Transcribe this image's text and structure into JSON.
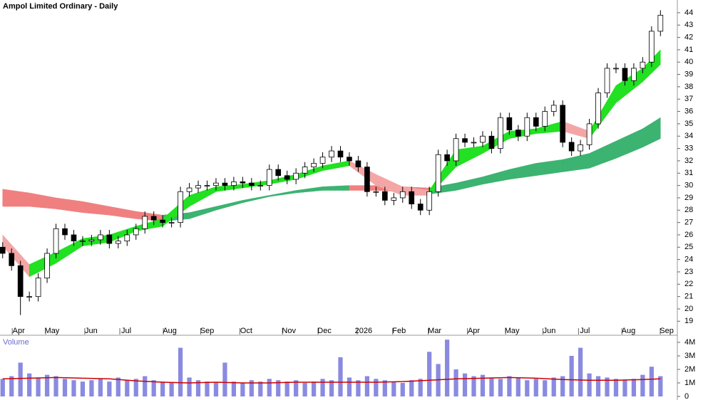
{
  "chart_data": {
    "type": "candlestick",
    "title": "Ampol Limited Ordinary - Daily",
    "up_color": "#ffffff",
    "down_color": "#000000",
    "xlim": [
      -0.3,
      75.9
    ],
    "xticks": [
      {
        "value": 1.8,
        "label": "Apr"
      },
      {
        "value": 5.55,
        "label": "May"
      },
      {
        "value": 9.96,
        "label": "Jun"
      },
      {
        "value": 13.9,
        "label": "Jul"
      },
      {
        "value": 18.8,
        "label": "Aug"
      },
      {
        "value": 23.0,
        "label": "Sep"
      },
      {
        "value": 27.4,
        "label": "Oct"
      },
      {
        "value": 32.2,
        "label": "Nov"
      },
      {
        "value": 36.2,
        "label": "Dec"
      },
      {
        "value": 40.6,
        "label": "2026"
      },
      {
        "value": 44.6,
        "label": "Feb"
      },
      {
        "value": 48.6,
        "label": "Mar"
      },
      {
        "value": 53.0,
        "label": "Apr"
      },
      {
        "value": 57.3,
        "label": "May"
      },
      {
        "value": 61.5,
        "label": "Jun"
      },
      {
        "value": 65.5,
        "label": "Jul"
      },
      {
        "value": 70.4,
        "label": "Aug"
      },
      {
        "value": 74.7,
        "label": "Sep"
      }
    ],
    "ylim": [
      18.5,
      44.8
    ],
    "yticks": [
      19,
      20,
      21,
      22,
      23,
      24,
      25,
      26,
      27,
      28,
      29,
      30,
      31,
      32,
      33,
      34,
      35,
      36,
      37,
      38,
      39,
      40,
      41,
      42,
      43,
      44
    ],
    "open": [
      25.0,
      24.5,
      23.5,
      21,
      21,
      22.5,
      24.5,
      26.5,
      26,
      25.5,
      25.5,
      25.6,
      26,
      25.3,
      25.5,
      26,
      26.5,
      27.5,
      27.2,
      27,
      27,
      29.5,
      29.8,
      30,
      30,
      30.2,
      30,
      30.3,
      30.2,
      30,
      30,
      31.3,
      30.8,
      30.5,
      31,
      31.5,
      31.8,
      32.3,
      32.8,
      32.3,
      32,
      31.5,
      29.5,
      29.5,
      28.8,
      29,
      29.5,
      28.5,
      28,
      29.5,
      32.5,
      32,
      33.8,
      33.5,
      33.5,
      34,
      33,
      35.5,
      34.5,
      34,
      35.5,
      34.8,
      36,
      36.5,
      33.5,
      32.8,
      33.3,
      35,
      37.5,
      39.5,
      39.5,
      38.5,
      39.5,
      40,
      42.5
    ],
    "high": [
      25.4,
      24.9,
      23.9,
      21.4,
      22.9,
      24.9,
      26.9,
      26.9,
      26.4,
      25.9,
      26.0,
      26.4,
      26.4,
      25.9,
      26.4,
      26.9,
      27.9,
      27.9,
      27.6,
      27.4,
      29.9,
      30.2,
      30.4,
      30.4,
      30.6,
      30.6,
      30.7,
      30.7,
      30.6,
      30.4,
      31.7,
      31.7,
      31.2,
      31.4,
      31.9,
      32.2,
      32.7,
      33.2,
      33.2,
      32.7,
      32.4,
      31.9,
      29.9,
      29.9,
      29.4,
      29.9,
      29.9,
      28.9,
      29.9,
      32.9,
      32.9,
      34.2,
      34.2,
      33.9,
      34.4,
      34.4,
      35.9,
      35.9,
      34.9,
      35.9,
      35.9,
      36.4,
      36.9,
      36.9,
      33.9,
      33.7,
      35.4,
      37.9,
      39.9,
      39.9,
      39.9,
      39.9,
      40.4,
      42.9,
      44.2
    ],
    "low": [
      24.1,
      23.1,
      19.5,
      20.6,
      20.6,
      22.1,
      24.1,
      25.6,
      25.1,
      25.1,
      25.1,
      25.2,
      24.9,
      24.9,
      25.1,
      25.6,
      26.1,
      26.8,
      26.6,
      26.6,
      26.6,
      29.1,
      29.4,
      29.6,
      29.6,
      29.6,
      29.6,
      29.8,
      29.6,
      29.6,
      29.6,
      30.4,
      30.1,
      30.1,
      30.6,
      31.1,
      31.4,
      31.9,
      31.9,
      31.6,
      31.1,
      29.1,
      29.1,
      28.4,
      28.4,
      28.6,
      28.1,
      27.6,
      27.6,
      29.1,
      31.6,
      31.6,
      33.1,
      33.1,
      33.1,
      32.6,
      32.6,
      34.1,
      33.6,
      33.6,
      34.4,
      34.4,
      35.6,
      33.1,
      32.4,
      32.4,
      32.9,
      34.6,
      37.1,
      39.1,
      38.1,
      38.1,
      39.1,
      39.6,
      42.1
    ],
    "close": [
      24.5,
      23.5,
      21,
      21,
      22.5,
      24.5,
      26.5,
      26,
      25.5,
      25.5,
      25.6,
      26,
      25.3,
      25.5,
      26,
      26.5,
      27.5,
      27.2,
      27,
      27,
      29.5,
      29.8,
      30,
      30,
      30.2,
      30,
      30.3,
      30.2,
      30,
      30,
      31.3,
      30.8,
      30.5,
      31,
      31.5,
      31.8,
      32.3,
      32.8,
      32.3,
      32,
      31.5,
      29.5,
      29.5,
      28.8,
      29,
      29.5,
      28.5,
      28,
      29.5,
      32.5,
      32,
      33.8,
      33.5,
      33.5,
      34,
      33,
      35.5,
      34.5,
      34,
      35.5,
      34.8,
      36,
      36.5,
      33.5,
      32.8,
      33.3,
      35,
      37.5,
      39.5,
      39.5,
      38.5,
      39.5,
      40,
      42.5,
      43.8
    ],
    "bands": [
      {
        "x": [
          0,
          3,
          6,
          9,
          12,
          15,
          18,
          21,
          24,
          27,
          30,
          33,
          36,
          39,
          42,
          45,
          48,
          51,
          54,
          57,
          60,
          63,
          66,
          69,
          72,
          74
        ],
        "upper": [
          29.7,
          29.4,
          29.0,
          28.7,
          28.3,
          27.9,
          27.6,
          27.8,
          28.3,
          28.8,
          29.2,
          29.6,
          29.9,
          30.0,
          30.0,
          29.9,
          29.8,
          30.2,
          30.7,
          31.3,
          31.8,
          32.1,
          32.6,
          33.6,
          34.6,
          35.5
        ],
        "lower": [
          28.3,
          28.3,
          28.1,
          27.8,
          27.6,
          27.3,
          27.1,
          27.3,
          28.0,
          28.6,
          29.1,
          29.4,
          29.6,
          29.6,
          29.6,
          29.5,
          29.3,
          29.6,
          30.1,
          30.5,
          30.8,
          31.1,
          31.4,
          32.2,
          33.1,
          33.8
        ],
        "up_color": "#3cb371",
        "down_color": "#f08080"
      },
      {
        "x": [
          0,
          3,
          6,
          9,
          12,
          15,
          18,
          21,
          24,
          27,
          30,
          33,
          36,
          39,
          42,
          45,
          48,
          51,
          54,
          57,
          60,
          63,
          66,
          69,
          72,
          74
        ],
        "upper": [
          26.0,
          23.6,
          24.6,
          25.7,
          26.0,
          26.7,
          27.3,
          29.2,
          29.9,
          30.1,
          30.4,
          30.9,
          31.6,
          32.0,
          30.9,
          29.9,
          29.6,
          32.9,
          33.2,
          34.4,
          34.6,
          35.2,
          34.4,
          38.1,
          39.5,
          41.0
        ],
        "lower": [
          25.1,
          22.6,
          23.7,
          25.1,
          25.4,
          26.3,
          26.7,
          28.3,
          29.5,
          29.8,
          30.1,
          30.5,
          31.2,
          31.6,
          30.0,
          29.2,
          29.2,
          31.5,
          32.6,
          33.8,
          34.2,
          34.4,
          33.8,
          36.7,
          38.4,
          39.8
        ],
        "up_color": "#22e022",
        "down_color": "#f4a6a6"
      }
    ],
    "volume": {
      "label": "Volume",
      "color": "#8a8ae0",
      "ylim": [
        0,
        4300000
      ],
      "yticks": [
        0,
        {
          "value": 1000000,
          "label": "1M"
        },
        {
          "value": 2000000,
          "label": "2M"
        },
        {
          "value": 3000000,
          "label": "3M"
        },
        {
          "value": 4000000,
          "label": "4M"
        }
      ],
      "values": [
        1300000,
        1500000,
        2500000,
        1700000,
        1400000,
        1600000,
        1500000,
        1300000,
        1200000,
        1100000,
        1200000,
        1300000,
        1100000,
        1400000,
        1200000,
        1300000,
        1500000,
        1200000,
        1100000,
        1000000,
        3600000,
        1400000,
        1200000,
        1100000,
        1000000,
        2500000,
        1100000,
        1000000,
        1200000,
        1100000,
        1300000,
        1200000,
        1100000,
        1200000,
        1000000,
        1100000,
        1300000,
        1200000,
        2900000,
        1400000,
        1200000,
        1500000,
        1300000,
        1200000,
        1100000,
        1000000,
        1200000,
        1300000,
        3300000,
        2400000,
        4200000,
        2000000,
        1700000,
        1500000,
        1600000,
        1400000,
        1300000,
        1500000,
        1400000,
        1200000,
        1300000,
        1200000,
        1400000,
        1500000,
        3000000,
        3600000,
        1700000,
        1500000,
        1400000,
        1300000,
        1200000,
        1300000,
        1600000,
        2200000,
        1500000
      ],
      "ma": {
        "x": [
          0,
          3,
          6,
          9,
          12,
          15,
          18,
          21,
          24,
          27,
          30,
          33,
          36,
          39,
          42,
          45,
          48,
          51,
          54,
          57,
          60,
          63,
          66,
          69,
          72,
          74
        ],
        "values": [
          1300000,
          1350000,
          1400000,
          1350000,
          1300000,
          1150000,
          1050000,
          1000000,
          1050000,
          1000000,
          1000000,
          1050000,
          1050000,
          1050000,
          1050000,
          1100000,
          1200000,
          1300000,
          1350000,
          1400000,
          1350000,
          1250000,
          1200000,
          1200000,
          1250000,
          1300000
        ],
        "color": "#cc0000"
      }
    }
  }
}
